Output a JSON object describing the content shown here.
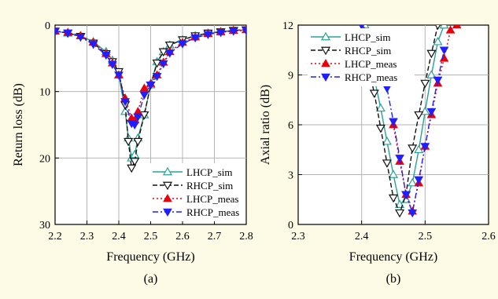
{
  "chart_data": [
    {
      "type": "line",
      "caption": "(a)",
      "xlabel": "Frequency (GHz)",
      "ylabel": "Return loss (dB)",
      "xlim": [
        2.2,
        2.8
      ],
      "ylim": [
        0,
        30
      ],
      "y_inverted": true,
      "xticks": [
        "2.2",
        "2.3",
        "2.4",
        "2.5",
        "2.6",
        "2.7",
        "2.8"
      ],
      "yticks": [
        "0",
        "10",
        "20",
        "30"
      ],
      "grid": true,
      "legend_position": "bottom-right",
      "series": [
        {
          "name": "LHCP_sim",
          "color": "#2aa198",
          "marker": "triangle-up-open",
          "dash": "solid",
          "x": [
            2.2,
            2.24,
            2.28,
            2.32,
            2.36,
            2.38,
            2.4,
            2.42,
            2.43,
            2.44,
            2.45,
            2.46,
            2.48,
            2.5,
            2.52,
            2.54,
            2.56,
            2.6,
            2.64,
            2.68,
            2.72,
            2.76,
            2.8
          ],
          "y": [
            0.9,
            1.2,
            1.6,
            2.5,
            4.0,
            5.3,
            7.5,
            13.0,
            17.0,
            20.0,
            19.5,
            17.0,
            13.5,
            9.0,
            5.5,
            4.0,
            3.0,
            2.2,
            1.6,
            1.2,
            1.0,
            0.8,
            0.7
          ]
        },
        {
          "name": "RHCP_sim",
          "color": "#111111",
          "marker": "triangle-down-open",
          "dash": "dash",
          "x": [
            2.2,
            2.24,
            2.28,
            2.32,
            2.36,
            2.38,
            2.4,
            2.42,
            2.43,
            2.44,
            2.45,
            2.46,
            2.48,
            2.5,
            2.52,
            2.54,
            2.56,
            2.6,
            2.64,
            2.68,
            2.72,
            2.76,
            2.8
          ],
          "y": [
            0.9,
            1.2,
            1.7,
            2.7,
            4.3,
            5.5,
            7.0,
            12.0,
            17.5,
            21.5,
            20.5,
            17.5,
            13.5,
            9.0,
            5.7,
            4.0,
            3.0,
            2.2,
            1.6,
            1.2,
            1.0,
            0.8,
            0.7
          ]
        },
        {
          "name": "LHCP_meas",
          "color": "#e8000b",
          "marker": "triangle-up-filled",
          "dash": "dot",
          "x": [
            2.2,
            2.24,
            2.28,
            2.32,
            2.36,
            2.38,
            2.4,
            2.42,
            2.44,
            2.45,
            2.46,
            2.48,
            2.5,
            2.52,
            2.54,
            2.56,
            2.6,
            2.64,
            2.68,
            2.72,
            2.76,
            2.8
          ],
          "y": [
            0.9,
            1.1,
            1.6,
            2.6,
            4.3,
            5.7,
            7.5,
            11.0,
            14.0,
            14.3,
            13.0,
            9.5,
            8.8,
            7.5,
            5.6,
            4.0,
            2.6,
            1.8,
            1.3,
            1.0,
            0.8,
            0.7
          ]
        },
        {
          "name": "RHCP_meas",
          "color": "#1f1fff",
          "marker": "triangle-down-filled",
          "dash": "dashdot",
          "x": [
            2.2,
            2.24,
            2.28,
            2.32,
            2.36,
            2.38,
            2.4,
            2.42,
            2.44,
            2.45,
            2.46,
            2.48,
            2.5,
            2.52,
            2.54,
            2.56,
            2.6,
            2.64,
            2.68,
            2.72,
            2.76,
            2.8
          ],
          "y": [
            0.9,
            1.2,
            1.8,
            2.9,
            4.5,
            5.9,
            7.5,
            11.5,
            14.8,
            15.0,
            13.8,
            10.5,
            9.0,
            7.7,
            5.8,
            4.2,
            2.8,
            1.9,
            1.4,
            1.1,
            0.9,
            0.8
          ]
        }
      ]
    },
    {
      "type": "line",
      "caption": "(b)",
      "xlabel": "Frequency (GHz)",
      "ylabel": "Axial ratio (dB)",
      "xlim": [
        2.3,
        2.6
      ],
      "ylim": [
        0,
        12
      ],
      "y_inverted": false,
      "xticks": [
        "2.3",
        "2.4",
        "2.5",
        "2.6"
      ],
      "yticks": [
        "0",
        "3",
        "6",
        "9",
        "12"
      ],
      "grid": true,
      "legend_position": "top-left",
      "series": [
        {
          "name": "LHCP_sim",
          "color": "#2aa198",
          "marker": "triangle-up-open",
          "dash": "solid",
          "x": [
            2.405,
            2.41,
            2.42,
            2.43,
            2.44,
            2.45,
            2.46,
            2.47,
            2.48,
            2.49,
            2.5,
            2.51,
            2.52,
            2.53
          ],
          "y": [
            12.0,
            10.8,
            8.8,
            7.0,
            5.0,
            3.0,
            1.2,
            1.5,
            2.5,
            4.5,
            6.8,
            9.0,
            11.0,
            12.0
          ]
        },
        {
          "name": "RHCP_sim",
          "color": "#111111",
          "marker": "triangle-down-open",
          "dash": "dash",
          "x": [
            2.41,
            2.42,
            2.43,
            2.44,
            2.45,
            2.46,
            2.47,
            2.48,
            2.49,
            2.5,
            2.51,
            2.52
          ],
          "y": [
            9.6,
            7.9,
            5.8,
            3.7,
            1.6,
            0.7,
            1.8,
            4.6,
            6.6,
            8.5,
            10.3,
            12.0
          ]
        },
        {
          "name": "LHCP_meas",
          "color": "#e8000b",
          "marker": "triangle-up-filled",
          "dash": "dot",
          "x": [
            2.45,
            2.46,
            2.47,
            2.48,
            2.49,
            2.5,
            2.51,
            2.52,
            2.53,
            2.54,
            2.55
          ],
          "y": [
            6.0,
            3.8,
            1.8,
            0.8,
            2.5,
            4.7,
            6.6,
            8.5,
            10.0,
            11.7,
            12.0
          ]
        },
        {
          "name": "RHCP_meas",
          "color": "#1f1fff",
          "marker": "triangle-down-filled",
          "dash": "dashdot",
          "x": [
            2.4,
            2.42,
            2.44,
            2.45,
            2.46,
            2.47,
            2.48,
            2.49,
            2.5,
            2.51,
            2.52,
            2.53
          ],
          "y": [
            12.0,
            11.2,
            8.2,
            6.2,
            4.0,
            1.8,
            0.7,
            2.7,
            4.7,
            6.8,
            8.7,
            10.5
          ]
        }
      ]
    }
  ]
}
